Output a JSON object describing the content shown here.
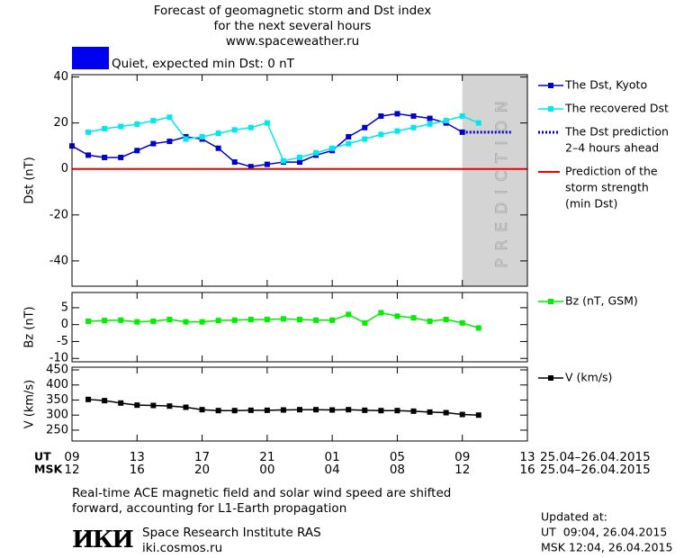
{
  "chart_data": [
    {
      "type": "line",
      "title": [
        "Forecast of geomagnetic storm and Dst index",
        "for the next several hours",
        "www.spaceweather.ru"
      ],
      "status": "Quiet, expected min Dst: 0 nT",
      "status_color": "#0000ee",
      "ylabel": "Dst (nT)",
      "xlim": [
        0,
        28
      ],
      "ylim": [
        -51,
        41
      ],
      "yticks": [
        -40,
        -20,
        0,
        20,
        40
      ],
      "prediction_region": {
        "x": [
          24,
          28
        ],
        "label": "PREDICTION",
        "color": "#d4d4d4"
      },
      "series": [
        {
          "name": [
            "The Dst, Kyoto"
          ],
          "color": "#0000cc",
          "marker": "square",
          "style": "solid",
          "x": [
            0,
            1,
            2,
            3,
            4,
            5,
            6,
            7,
            8,
            9,
            10,
            11,
            12,
            13,
            14,
            15,
            16,
            17,
            18,
            19,
            20,
            21,
            22,
            23,
            24
          ],
          "values": [
            10,
            6,
            5,
            5,
            8,
            11,
            12,
            14,
            13,
            9,
            3,
            1,
            2,
            3,
            3,
            6,
            8,
            14,
            18,
            23,
            24,
            23,
            22,
            20,
            16
          ]
        },
        {
          "name": [
            "The recovered Dst"
          ],
          "color": "#00e8ee",
          "marker": "square",
          "style": "solid",
          "x": [
            1,
            2,
            3,
            4,
            5,
            6,
            7,
            8,
            9,
            10,
            11,
            12,
            13,
            14,
            15,
            16,
            17,
            18,
            19,
            20,
            21,
            22,
            23,
            24,
            25
          ],
          "values": [
            16,
            17.5,
            18.5,
            19.5,
            21,
            22.5,
            13,
            14,
            15.5,
            17,
            18,
            20,
            3.5,
            5,
            7,
            9,
            11,
            13,
            15,
            16.5,
            18,
            19.5,
            21,
            23,
            20
          ]
        },
        {
          "name": [
            "The Dst prediction",
            "2–4 hours ahead"
          ],
          "color": "#0000cc",
          "marker": "none",
          "style": "dotted",
          "x": [
            24,
            27
          ],
          "values": [
            16,
            16
          ]
        },
        {
          "name": [
            "Prediction of the",
            "storm strength",
            "(min Dst)"
          ],
          "color": "#ee0000",
          "marker": "none",
          "style": "hline",
          "values": [
            0
          ]
        }
      ]
    },
    {
      "type": "line",
      "ylabel": "Bz (nT)",
      "xlim": [
        0,
        28
      ],
      "ylim": [
        -11,
        9.5
      ],
      "yticks": [
        -10,
        -5,
        0,
        5
      ],
      "series": [
        {
          "name": [
            "Bz (nT, GSM)"
          ],
          "color": "#00ee00",
          "marker": "square",
          "style": "solid",
          "x": [
            1,
            2,
            3,
            4,
            5,
            6,
            7,
            8,
            9,
            10,
            11,
            12,
            13,
            14,
            15,
            16,
            17,
            18,
            19,
            20,
            21,
            22,
            23,
            24,
            25
          ],
          "values": [
            1,
            1.2,
            1.3,
            0.8,
            1,
            1.5,
            0.8,
            0.8,
            1.2,
            1.3,
            1.5,
            1.5,
            1.7,
            1.5,
            1.3,
            1.3,
            3,
            0.5,
            3.5,
            2.5,
            2,
            1,
            1.5,
            0.5,
            -1
          ]
        }
      ]
    },
    {
      "type": "line",
      "ylabel": "V (km/s)",
      "xlim": [
        0,
        28
      ],
      "ylim": [
        214,
        459
      ],
      "yticks": [
        250,
        300,
        350,
        400,
        450
      ],
      "xticks": [
        {
          "value": 0,
          "label": "09"
        },
        {
          "value": 4,
          "label": "13"
        },
        {
          "value": 8,
          "label": "17"
        },
        {
          "value": 12,
          "label": "21"
        },
        {
          "value": 16,
          "label": "01"
        },
        {
          "value": 20,
          "label": "05"
        },
        {
          "value": 24,
          "label": "09"
        },
        {
          "value": 28,
          "label": "13"
        }
      ],
      "x_labels_msk": [
        "12",
        "16",
        "20",
        "00",
        "04",
        "08",
        "12",
        "16"
      ],
      "x_row_names": [
        "UT",
        "MSK"
      ],
      "x_captions": [
        "25.04–26.04.2015",
        "25.04–26.04.2015"
      ],
      "series": [
        {
          "name": [
            "V (km/s)"
          ],
          "color": "#000000",
          "marker": "square",
          "style": "solid",
          "x": [
            1,
            2,
            3,
            4,
            5,
            6,
            7,
            8,
            9,
            10,
            11,
            12,
            13,
            14,
            15,
            16,
            17,
            18,
            19,
            20,
            21,
            22,
            23,
            24,
            25
          ],
          "values": [
            352,
            348,
            340,
            333,
            332,
            330,
            326,
            318,
            315,
            315,
            316,
            316,
            317,
            318,
            318,
            317,
            318,
            316,
            315,
            315,
            313,
            310,
            308,
            302,
            300
          ]
        }
      ]
    }
  ],
  "footer": {
    "note": [
      "Real-time ACE magnetic field and solar wind speed are shifted",
      "forward, accounting for L1-Earth propagation"
    ],
    "logo": "ИКИ",
    "institute": "Space Research Institute RAS",
    "url": "iki.cosmos.ru",
    "updated": [
      "Updated at:",
      "UT  09:04, 26.04.2015",
      "MSK 12:04, 26.04.2015"
    ]
  }
}
